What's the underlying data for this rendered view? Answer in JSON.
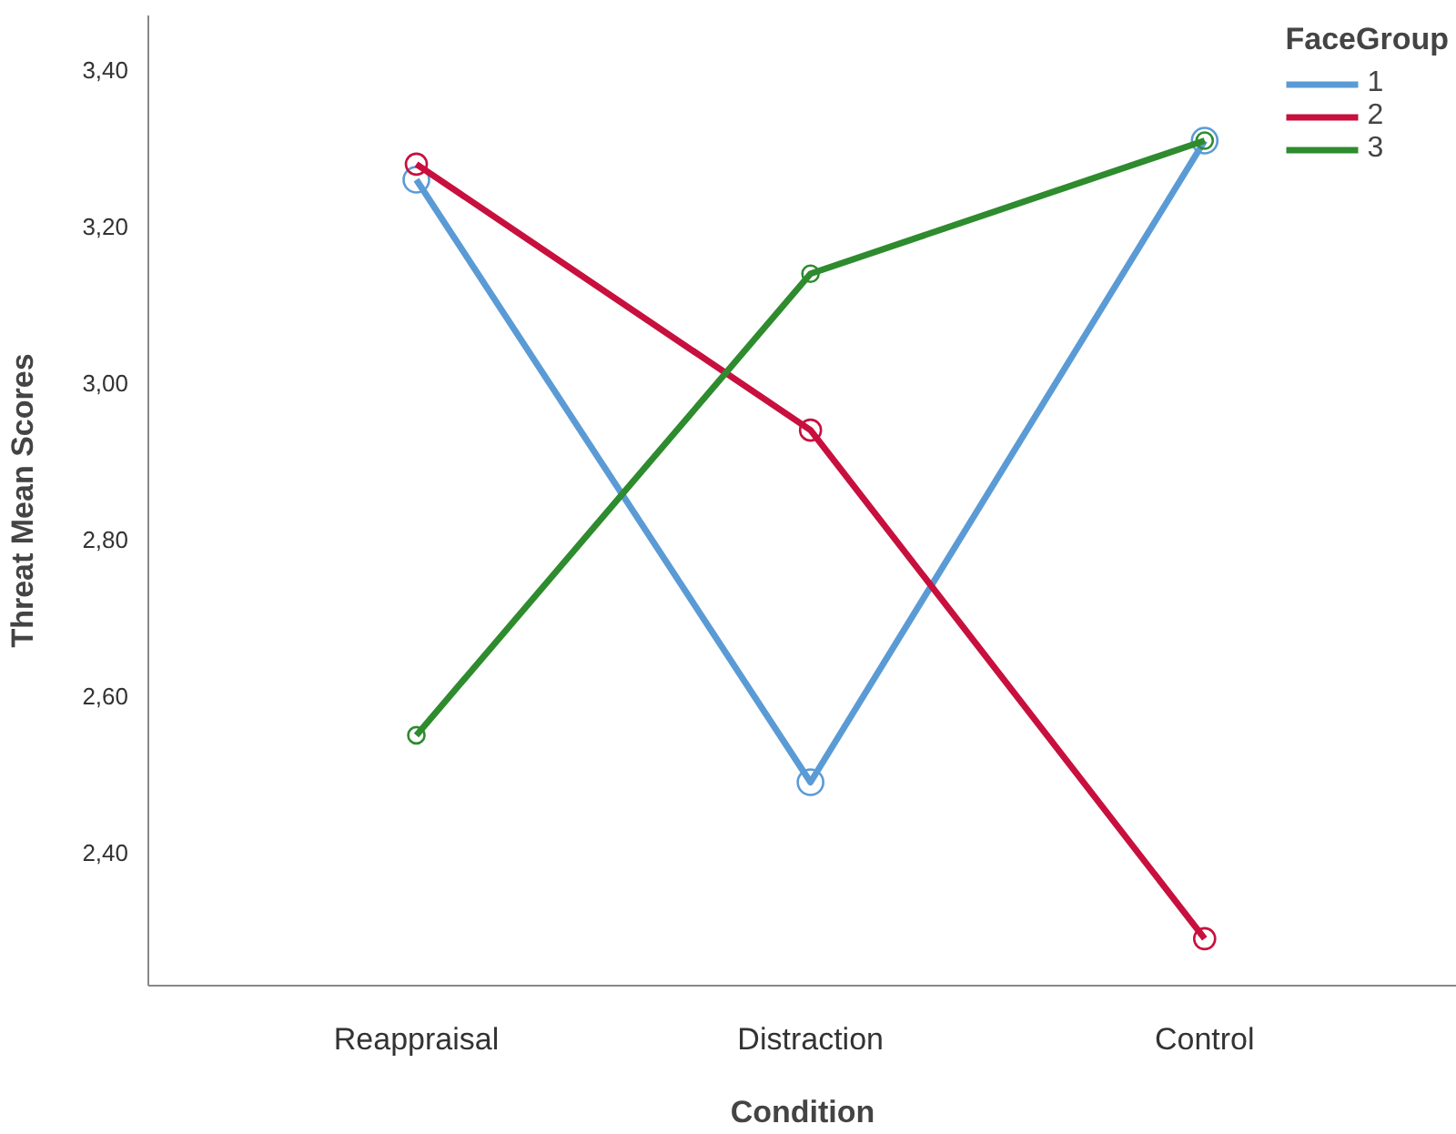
{
  "chart_data": {
    "type": "line",
    "xlabel": "Condition",
    "ylabel": "Threat Mean Scores",
    "legend_title": "FaceGroup",
    "categories": [
      "Reappraisal",
      "Distraction",
      "Control"
    ],
    "series": [
      {
        "name": "1",
        "color": "#5b9bd5",
        "values": [
          3.26,
          2.49,
          3.31
        ]
      },
      {
        "name": "2",
        "color": "#c8103e",
        "values": [
          3.28,
          2.94,
          2.29
        ]
      },
      {
        "name": "3",
        "color": "#2e8b2e",
        "values": [
          2.55,
          3.14,
          3.31
        ]
      }
    ],
    "ylim": [
      2.23,
      3.47
    ],
    "yticks": [
      {
        "value": 2.4,
        "label": "2,40"
      },
      {
        "value": 2.6,
        "label": "2,60"
      },
      {
        "value": 2.8,
        "label": "2,80"
      },
      {
        "value": 3.0,
        "label": "3,00"
      },
      {
        "value": 3.2,
        "label": "3,20"
      },
      {
        "value": 3.4,
        "label": "3,40"
      }
    ],
    "grid": false,
    "legend": "top right",
    "marker": "circle",
    "line_style": "solid"
  }
}
